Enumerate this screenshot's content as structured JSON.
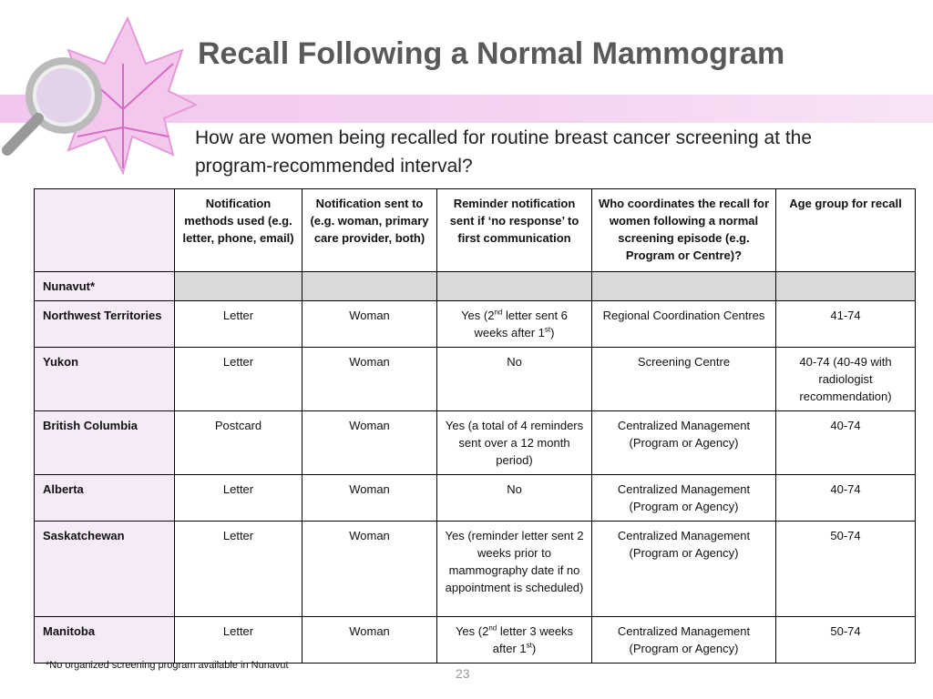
{
  "header": {
    "title": "Recall Following a Normal Mammogram",
    "subtitle": "How are women being recalled for routine breast cancer screening at the program-recommended interval?"
  },
  "table": {
    "columns": [
      "Notification methods used (e.g. letter, phone, email)",
      "Notification sent to (e.g. woman, primary care provider, both)",
      "Reminder notification sent if ‘no response’ to first communication",
      "Who coordinates the recall for women following a normal screening episode (e.g. Program or Centre)?",
      "Age group for recall"
    ],
    "rows": [
      {
        "name": "Nunavut*",
        "cells": [
          null,
          null,
          null,
          null,
          null
        ]
      },
      {
        "name": "Northwest Territories",
        "cells": [
          "Letter",
          "Woman",
          [
            {
              "t": "Yes (2"
            },
            {
              "sup": "nd"
            },
            {
              "t": " letter sent 6 weeks after 1"
            },
            {
              "sup": "st"
            },
            {
              "t": ")"
            }
          ],
          "Regional Coordination Centres",
          "41-74"
        ]
      },
      {
        "name": "Yukon",
        "cells": [
          "Letter",
          "Woman",
          "No",
          "Screening Centre",
          "40-74 (40-49 with radiologist recommendation)"
        ]
      },
      {
        "name": "British Columbia",
        "cells": [
          "Postcard",
          "Woman",
          "Yes (a total of 4 reminders sent over a 12 month period)",
          "Centralized Management (Program or Agency)",
          "40-74"
        ]
      },
      {
        "name": "Alberta",
        "cells": [
          "Letter",
          "Woman",
          "No",
          "Centralized Management (Program or Agency)",
          "40-74"
        ]
      },
      {
        "name": "Saskatchewan",
        "cells": [
          "Letter",
          "Woman",
          "Yes (reminder letter sent 2 weeks prior to mammography date if no appointment is scheduled)",
          "Centralized Management (Program or Agency)",
          "50-74"
        ]
      },
      {
        "name": "Manitoba",
        "cells": [
          "Letter",
          "Woman",
          [
            {
              "t": "Yes (2"
            },
            {
              "sup": "nd"
            },
            {
              "t": " letter 3 weeks after 1"
            },
            {
              "sup": "st"
            },
            {
              "t": ")"
            }
          ],
          "Centralized Management (Program or Agency)",
          "50-74"
        ]
      }
    ]
  },
  "footnote": "*No organized screening program available in Nunavut",
  "page_number": "23"
}
